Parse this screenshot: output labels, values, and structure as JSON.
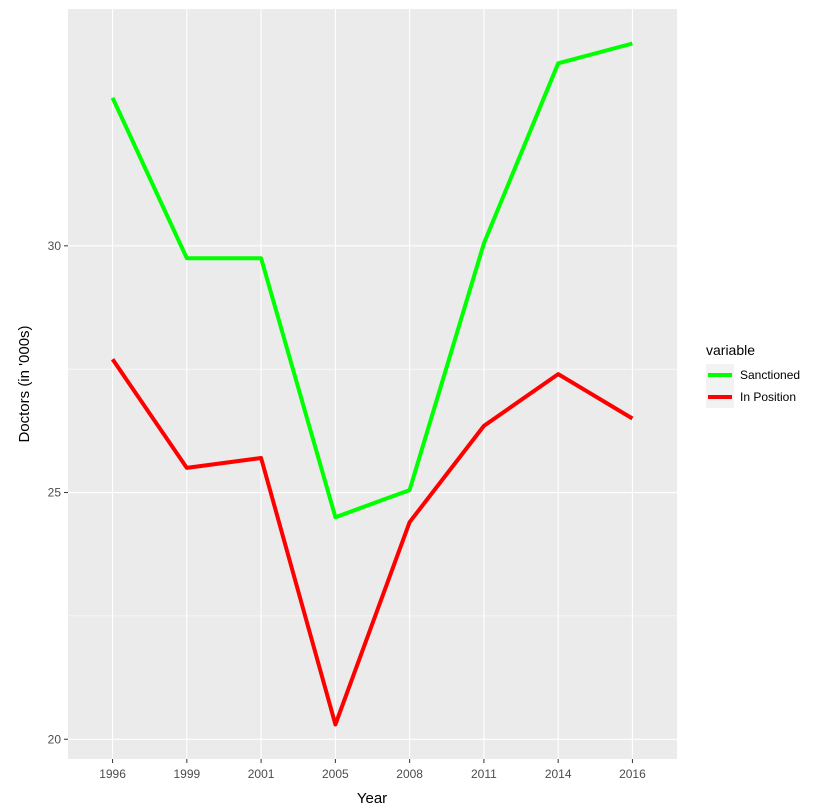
{
  "chart_data": {
    "type": "line",
    "xlabel": "Year",
    "ylabel": "Doctors (in '000s)",
    "categories": [
      "1996",
      "1999",
      "2001",
      "2005",
      "2008",
      "2011",
      "2014",
      "2016"
    ],
    "yticks": [
      20,
      25,
      30
    ],
    "yticks_minor": [
      22.5,
      27.5
    ],
    "ylim": [
      19.6,
      34.8
    ],
    "grid": true,
    "legend": {
      "title": "variable",
      "position": "right"
    },
    "series": [
      {
        "name": "Sanctioned",
        "color": "#00ff00",
        "values": [
          33.0,
          29.75,
          29.75,
          24.5,
          25.05,
          30.05,
          33.7,
          34.1
        ]
      },
      {
        "name": "In Position",
        "color": "#ff0000",
        "values": [
          27.7,
          25.5,
          25.7,
          20.3,
          24.4,
          26.35,
          27.4,
          26.5
        ]
      }
    ]
  }
}
